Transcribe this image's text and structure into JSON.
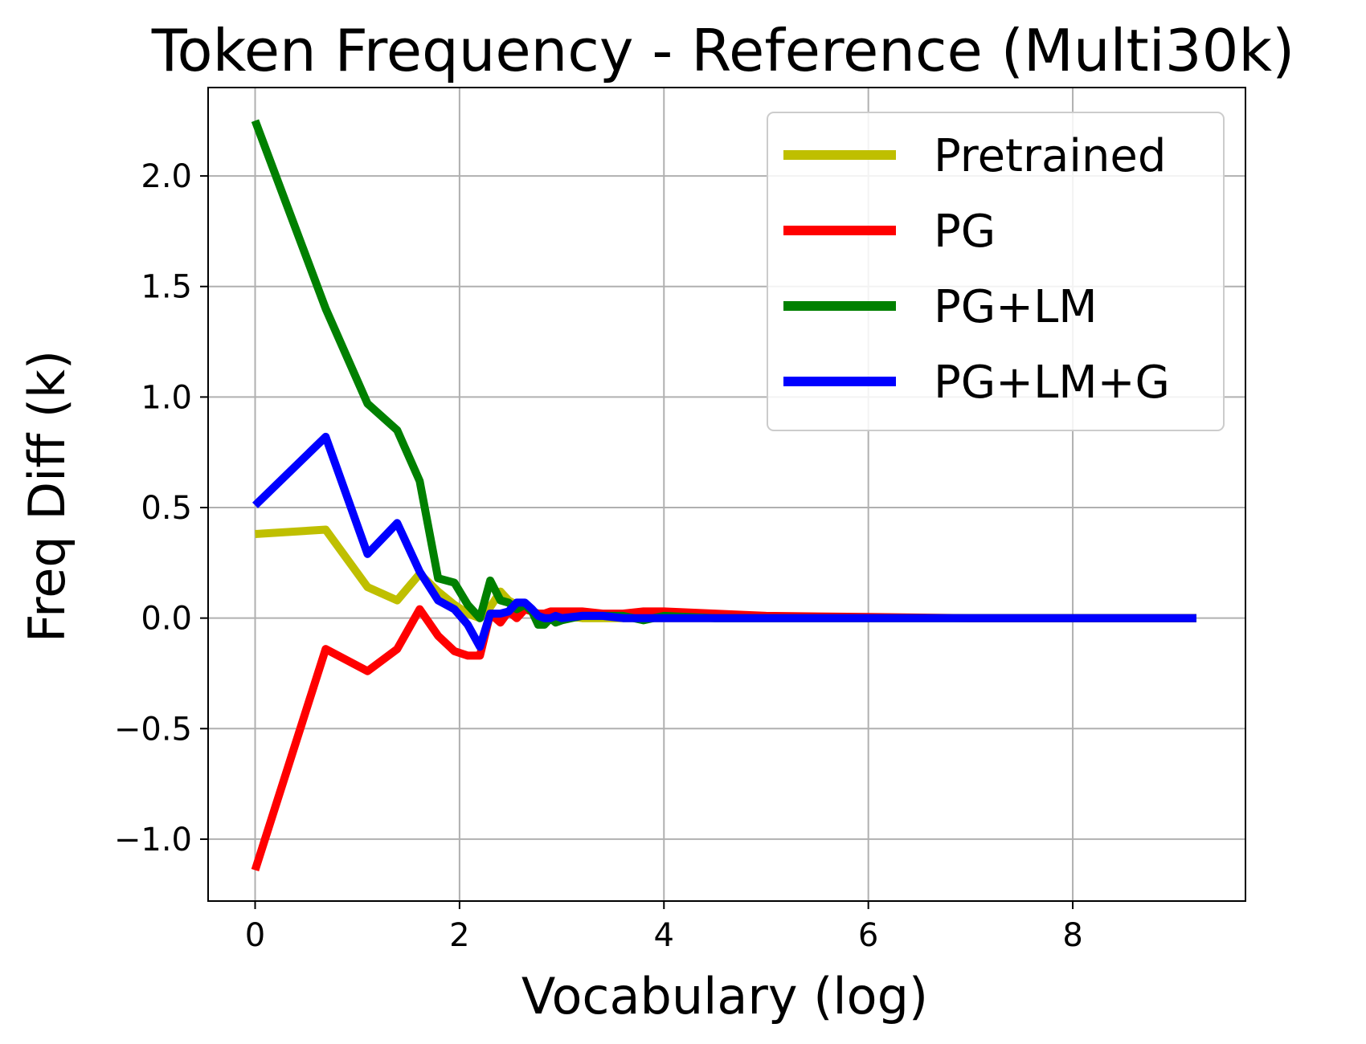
{
  "chart_data": {
    "type": "line",
    "title": "Token Frequency - Reference (Multi30k)",
    "xlabel": "Vocabulary (log)",
    "ylabel": "Freq Diff (k)",
    "xlim": [
      -0.46,
      9.69
    ],
    "ylim": [
      -1.28,
      2.4
    ],
    "xticks": [
      0,
      2,
      4,
      6,
      8
    ],
    "xtick_labels": [
      "0",
      "2",
      "4",
      "6",
      "8"
    ],
    "yticks": [
      -1.0,
      -0.5,
      0.0,
      0.5,
      1.0,
      1.5,
      2.0
    ],
    "ytick_labels": [
      "−1.0",
      "−0.5",
      "0.0",
      "0.5",
      "1.0",
      "1.5",
      "2.0"
    ],
    "grid": true,
    "legend_position": "top-right",
    "series": [
      {
        "name": "Pretrained",
        "color": "#bfbf00",
        "x": [
          0,
          0.69,
          1.1,
          1.39,
          1.61,
          1.79,
          1.95,
          2.08,
          2.2,
          2.3,
          2.4,
          2.48,
          2.56,
          2.64,
          2.71,
          2.77,
          2.83,
          2.89,
          2.94,
          3.0,
          3.2,
          3.4,
          3.6,
          3.8,
          4.0,
          4.5,
          5.0,
          6.0,
          7.0,
          8.0,
          9.21
        ],
        "y": [
          0.38,
          0.4,
          0.14,
          0.08,
          0.2,
          0.12,
          0.06,
          0.02,
          0.0,
          0.05,
          0.12,
          0.08,
          0.06,
          0.04,
          0.03,
          0.02,
          0.02,
          0.02,
          0.01,
          0.01,
          0.0,
          0.0,
          0.0,
          0.0,
          0.0,
          0.0,
          0.0,
          0.0,
          0.0,
          0.0,
          0.0
        ]
      },
      {
        "name": "PG",
        "color": "#ff0000",
        "x": [
          0,
          0.69,
          1.1,
          1.39,
          1.61,
          1.79,
          1.95,
          2.08,
          2.2,
          2.3,
          2.4,
          2.48,
          2.56,
          2.64,
          2.71,
          2.77,
          2.83,
          2.89,
          2.94,
          3.0,
          3.2,
          3.4,
          3.6,
          3.8,
          4.0,
          4.5,
          5.0,
          6.0,
          7.0,
          8.0,
          9.21
        ],
        "y": [
          -1.14,
          -0.14,
          -0.24,
          -0.14,
          0.04,
          -0.08,
          -0.15,
          -0.17,
          -0.17,
          0.02,
          -0.02,
          0.03,
          0.0,
          0.04,
          0.03,
          0.02,
          0.02,
          0.03,
          0.03,
          0.03,
          0.03,
          0.02,
          0.02,
          0.03,
          0.03,
          0.02,
          0.01,
          0.005,
          0.0,
          0.0,
          0.0
        ]
      },
      {
        "name": "PG+LM",
        "color": "#008000",
        "x": [
          0,
          0.69,
          1.1,
          1.39,
          1.61,
          1.79,
          1.95,
          2.08,
          2.2,
          2.3,
          2.4,
          2.48,
          2.56,
          2.64,
          2.71,
          2.77,
          2.83,
          2.89,
          2.94,
          3.0,
          3.2,
          3.4,
          3.6,
          3.8,
          4.0,
          4.5,
          5.0,
          6.0,
          7.0,
          8.0,
          9.21
        ],
        "y": [
          2.25,
          1.4,
          0.97,
          0.85,
          0.62,
          0.18,
          0.16,
          0.06,
          0.0,
          0.17,
          0.08,
          0.07,
          0.04,
          0.06,
          0.03,
          -0.03,
          -0.03,
          0.0,
          -0.02,
          -0.01,
          0.01,
          0.01,
          0.01,
          -0.01,
          0.01,
          0.0,
          0.0,
          0.0,
          0.0,
          0.0,
          0.0
        ]
      },
      {
        "name": "PG+LM+G",
        "color": "#0000ff",
        "x": [
          0,
          0.69,
          1.1,
          1.39,
          1.61,
          1.79,
          1.95,
          2.08,
          2.2,
          2.3,
          2.4,
          2.48,
          2.56,
          2.64,
          2.71,
          2.77,
          2.83,
          2.89,
          2.94,
          3.0,
          3.2,
          3.4,
          3.6,
          3.8,
          4.0,
          4.5,
          5.0,
          6.0,
          7.0,
          8.0,
          9.21
        ],
        "y": [
          0.51,
          0.82,
          0.29,
          0.43,
          0.21,
          0.08,
          0.04,
          -0.03,
          -0.13,
          0.02,
          0.02,
          0.03,
          0.07,
          0.07,
          0.04,
          0.01,
          0.0,
          0.0,
          0.01,
          0.0,
          0.01,
          0.01,
          0.0,
          0.0,
          0.0,
          0.0,
          0.0,
          0.0,
          0.0,
          0.0,
          0.0
        ]
      }
    ]
  }
}
